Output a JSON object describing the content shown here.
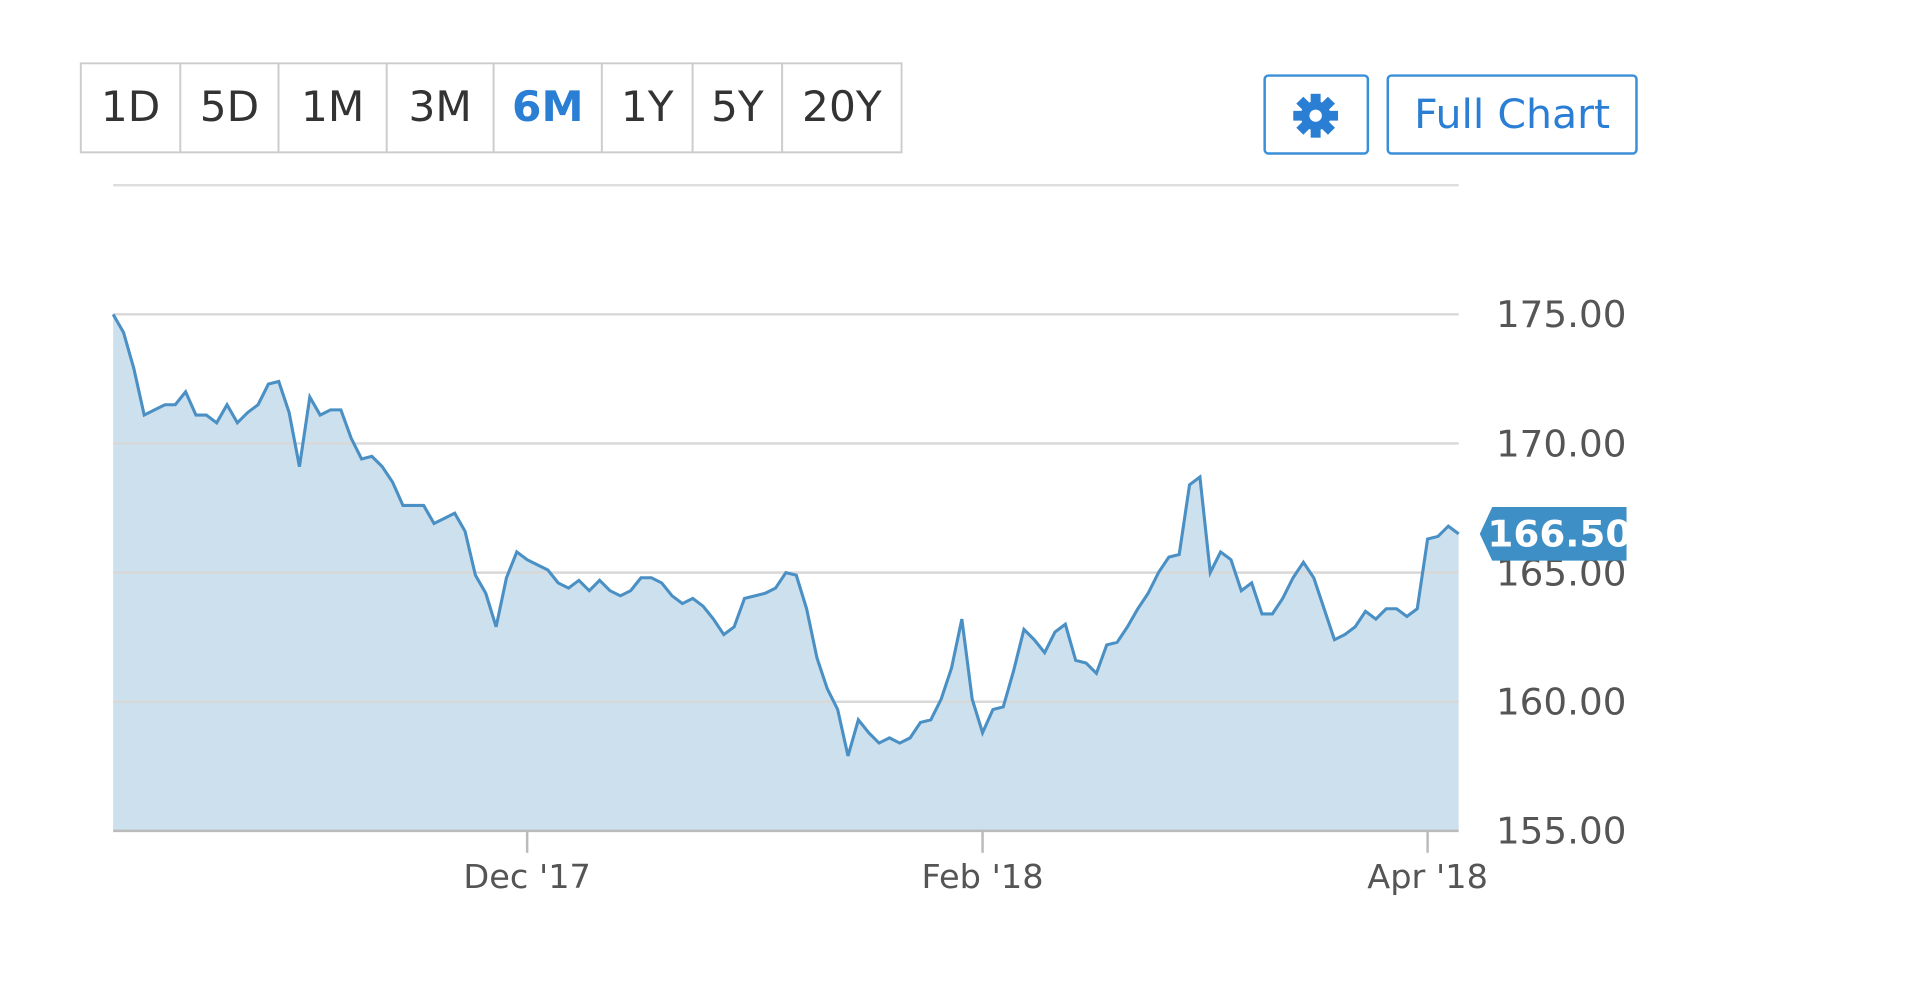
{
  "ranges": {
    "buttons": [
      "1D",
      "5D",
      "1M",
      "3M",
      "6M",
      "1Y",
      "5Y",
      "20Y"
    ],
    "active": 4
  },
  "full_chart": "Full Chart",
  "chart_data": {
    "type": "area",
    "color": "#4a90c4",
    "fill": "#cde0ee",
    "grid": true,
    "values": [
      175.0,
      174.3,
      172.9,
      171.1,
      171.3,
      171.5,
      171.5,
      172.0,
      171.1,
      171.1,
      170.8,
      171.5,
      170.8,
      171.2,
      171.5,
      172.3,
      172.4,
      171.2,
      169.1,
      171.8,
      171.1,
      171.3,
      171.3,
      170.2,
      169.4,
      169.5,
      169.1,
      168.5,
      167.6,
      167.6,
      167.6,
      166.9,
      167.1,
      167.3,
      166.6,
      164.9,
      164.2,
      162.9,
      164.8,
      165.8,
      165.5,
      165.3,
      165.1,
      164.6,
      164.4,
      164.7,
      164.3,
      164.7,
      164.3,
      164.1,
      164.3,
      164.8,
      164.8,
      164.6,
      164.1,
      163.8,
      164.0,
      163.7,
      163.2,
      162.6,
      162.9,
      164.0,
      164.1,
      164.2,
      164.4,
      165.0,
      164.9,
      163.6,
      161.7,
      160.5,
      159.7,
      157.9,
      159.3,
      158.8,
      158.4,
      158.6,
      158.4,
      158.6,
      159.2,
      159.3,
      160.1,
      161.3,
      163.2,
      160.1,
      158.8,
      159.7,
      159.8,
      161.2,
      162.8,
      162.4,
      161.9,
      162.7,
      163.0,
      161.6,
      161.5,
      161.1,
      162.2,
      162.3,
      162.9,
      163.6,
      164.2,
      165.0,
      165.6,
      165.7,
      168.4,
      168.7,
      165.0,
      165.8,
      165.5,
      164.3,
      164.6,
      163.4,
      163.4,
      164.0,
      164.8,
      165.4,
      164.8,
      163.6,
      162.4,
      162.6,
      162.9,
      163.5,
      163.2,
      163.6,
      163.6,
      163.3,
      163.6,
      166.3,
      166.4,
      166.8,
      166.5
    ],
    "xlim": [
      0,
      130
    ],
    "xticks": [
      {
        "value": 40,
        "label": "Dec '17"
      },
      {
        "value": 84,
        "label": "Feb '18"
      },
      {
        "value": 127,
        "label": "Apr '18"
      }
    ],
    "ylim": [
      155,
      180
    ],
    "yticks": [
      {
        "value": 155,
        "label": "155.00"
      },
      {
        "value": 160,
        "label": "160.00"
      },
      {
        "value": 165,
        "label": "165.00"
      },
      {
        "value": 170,
        "label": "170.00"
      },
      {
        "value": 175,
        "label": "175.00"
      }
    ],
    "last_price": {
      "value": 166.5,
      "label": "166.50"
    }
  }
}
